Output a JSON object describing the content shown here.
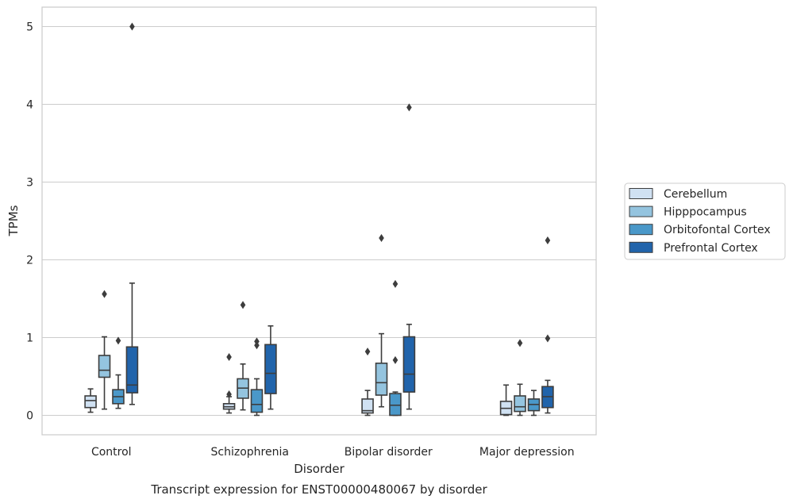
{
  "chart_data": {
    "type": "box",
    "title": "",
    "caption": "Transcript expression for ENST00000480067 by disorder",
    "xlabel": "Disorder",
    "ylabel": "TPMs",
    "ylim": [
      -0.25,
      5.25
    ],
    "yticks": [
      "0",
      "1",
      "2",
      "3",
      "4",
      "5"
    ],
    "ytick_values": [
      0,
      1,
      2,
      3,
      4,
      5
    ],
    "grid": "horizontal",
    "legend_position": "right",
    "categories": [
      "Control",
      "Schizophrenia",
      "Bipolar disorder",
      "Major depression"
    ],
    "series": [
      {
        "name": "Cerebellum",
        "color": "#d0e1f2",
        "boxes": [
          {
            "whislo": 0.04,
            "q1": 0.1,
            "med": 0.19,
            "q3": 0.25,
            "whishi": 0.34,
            "fliers": []
          },
          {
            "whislo": 0.03,
            "q1": 0.08,
            "med": 0.11,
            "q3": 0.15,
            "whishi": 0.24,
            "fliers": [
              0.27,
              0.75
            ]
          },
          {
            "whislo": 0.0,
            "q1": 0.03,
            "med": 0.06,
            "q3": 0.21,
            "whishi": 0.32,
            "fliers": [
              0.82
            ]
          },
          {
            "whislo": 0.0,
            "q1": 0.01,
            "med": 0.09,
            "q3": 0.18,
            "whishi": 0.39,
            "fliers": []
          }
        ]
      },
      {
        "name": "Hipppocampus",
        "color": "#94c4df",
        "boxes": [
          {
            "whislo": 0.08,
            "q1": 0.49,
            "med": 0.58,
            "q3": 0.77,
            "whishi": 1.01,
            "fliers": [
              1.56
            ]
          },
          {
            "whislo": 0.07,
            "q1": 0.22,
            "med": 0.35,
            "q3": 0.47,
            "whishi": 0.66,
            "fliers": [
              1.42
            ]
          },
          {
            "whislo": 0.11,
            "q1": 0.26,
            "med": 0.42,
            "q3": 0.67,
            "whishi": 1.05,
            "fliers": [
              2.28
            ]
          },
          {
            "whislo": 0.0,
            "q1": 0.05,
            "med": 0.11,
            "q3": 0.25,
            "whishi": 0.4,
            "fliers": [
              0.93
            ]
          }
        ]
      },
      {
        "name": "Orbitofontal Cortex",
        "color": "#4a98c9",
        "boxes": [
          {
            "whislo": 0.09,
            "q1": 0.15,
            "med": 0.24,
            "q3": 0.33,
            "whishi": 0.52,
            "fliers": [
              0.96
            ]
          },
          {
            "whislo": 0.0,
            "q1": 0.04,
            "med": 0.14,
            "q3": 0.33,
            "whishi": 0.47,
            "fliers": [
              0.9,
              0.95
            ]
          },
          {
            "whislo": 0.0,
            "q1": 0.0,
            "med": 0.13,
            "q3": 0.28,
            "whishi": 0.3,
            "fliers": [
              0.71,
              1.69
            ]
          },
          {
            "whislo": 0.0,
            "q1": 0.06,
            "med": 0.14,
            "q3": 0.21,
            "whishi": 0.32,
            "fliers": []
          }
        ]
      },
      {
        "name": "Prefrontal Cortex",
        "color": "#2164ab",
        "boxes": [
          {
            "whislo": 0.14,
            "q1": 0.29,
            "med": 0.39,
            "q3": 0.88,
            "whishi": 1.7,
            "fliers": [
              5.0
            ]
          },
          {
            "whislo": 0.08,
            "q1": 0.28,
            "med": 0.54,
            "q3": 0.91,
            "whishi": 1.15,
            "fliers": []
          },
          {
            "whislo": 0.08,
            "q1": 0.3,
            "med": 0.53,
            "q3": 1.01,
            "whishi": 1.17,
            "fliers": [
              3.96
            ]
          },
          {
            "whislo": 0.03,
            "q1": 0.1,
            "med": 0.24,
            "q3": 0.37,
            "whishi": 0.45,
            "fliers": [
              0.99,
              2.25
            ]
          }
        ]
      }
    ]
  }
}
